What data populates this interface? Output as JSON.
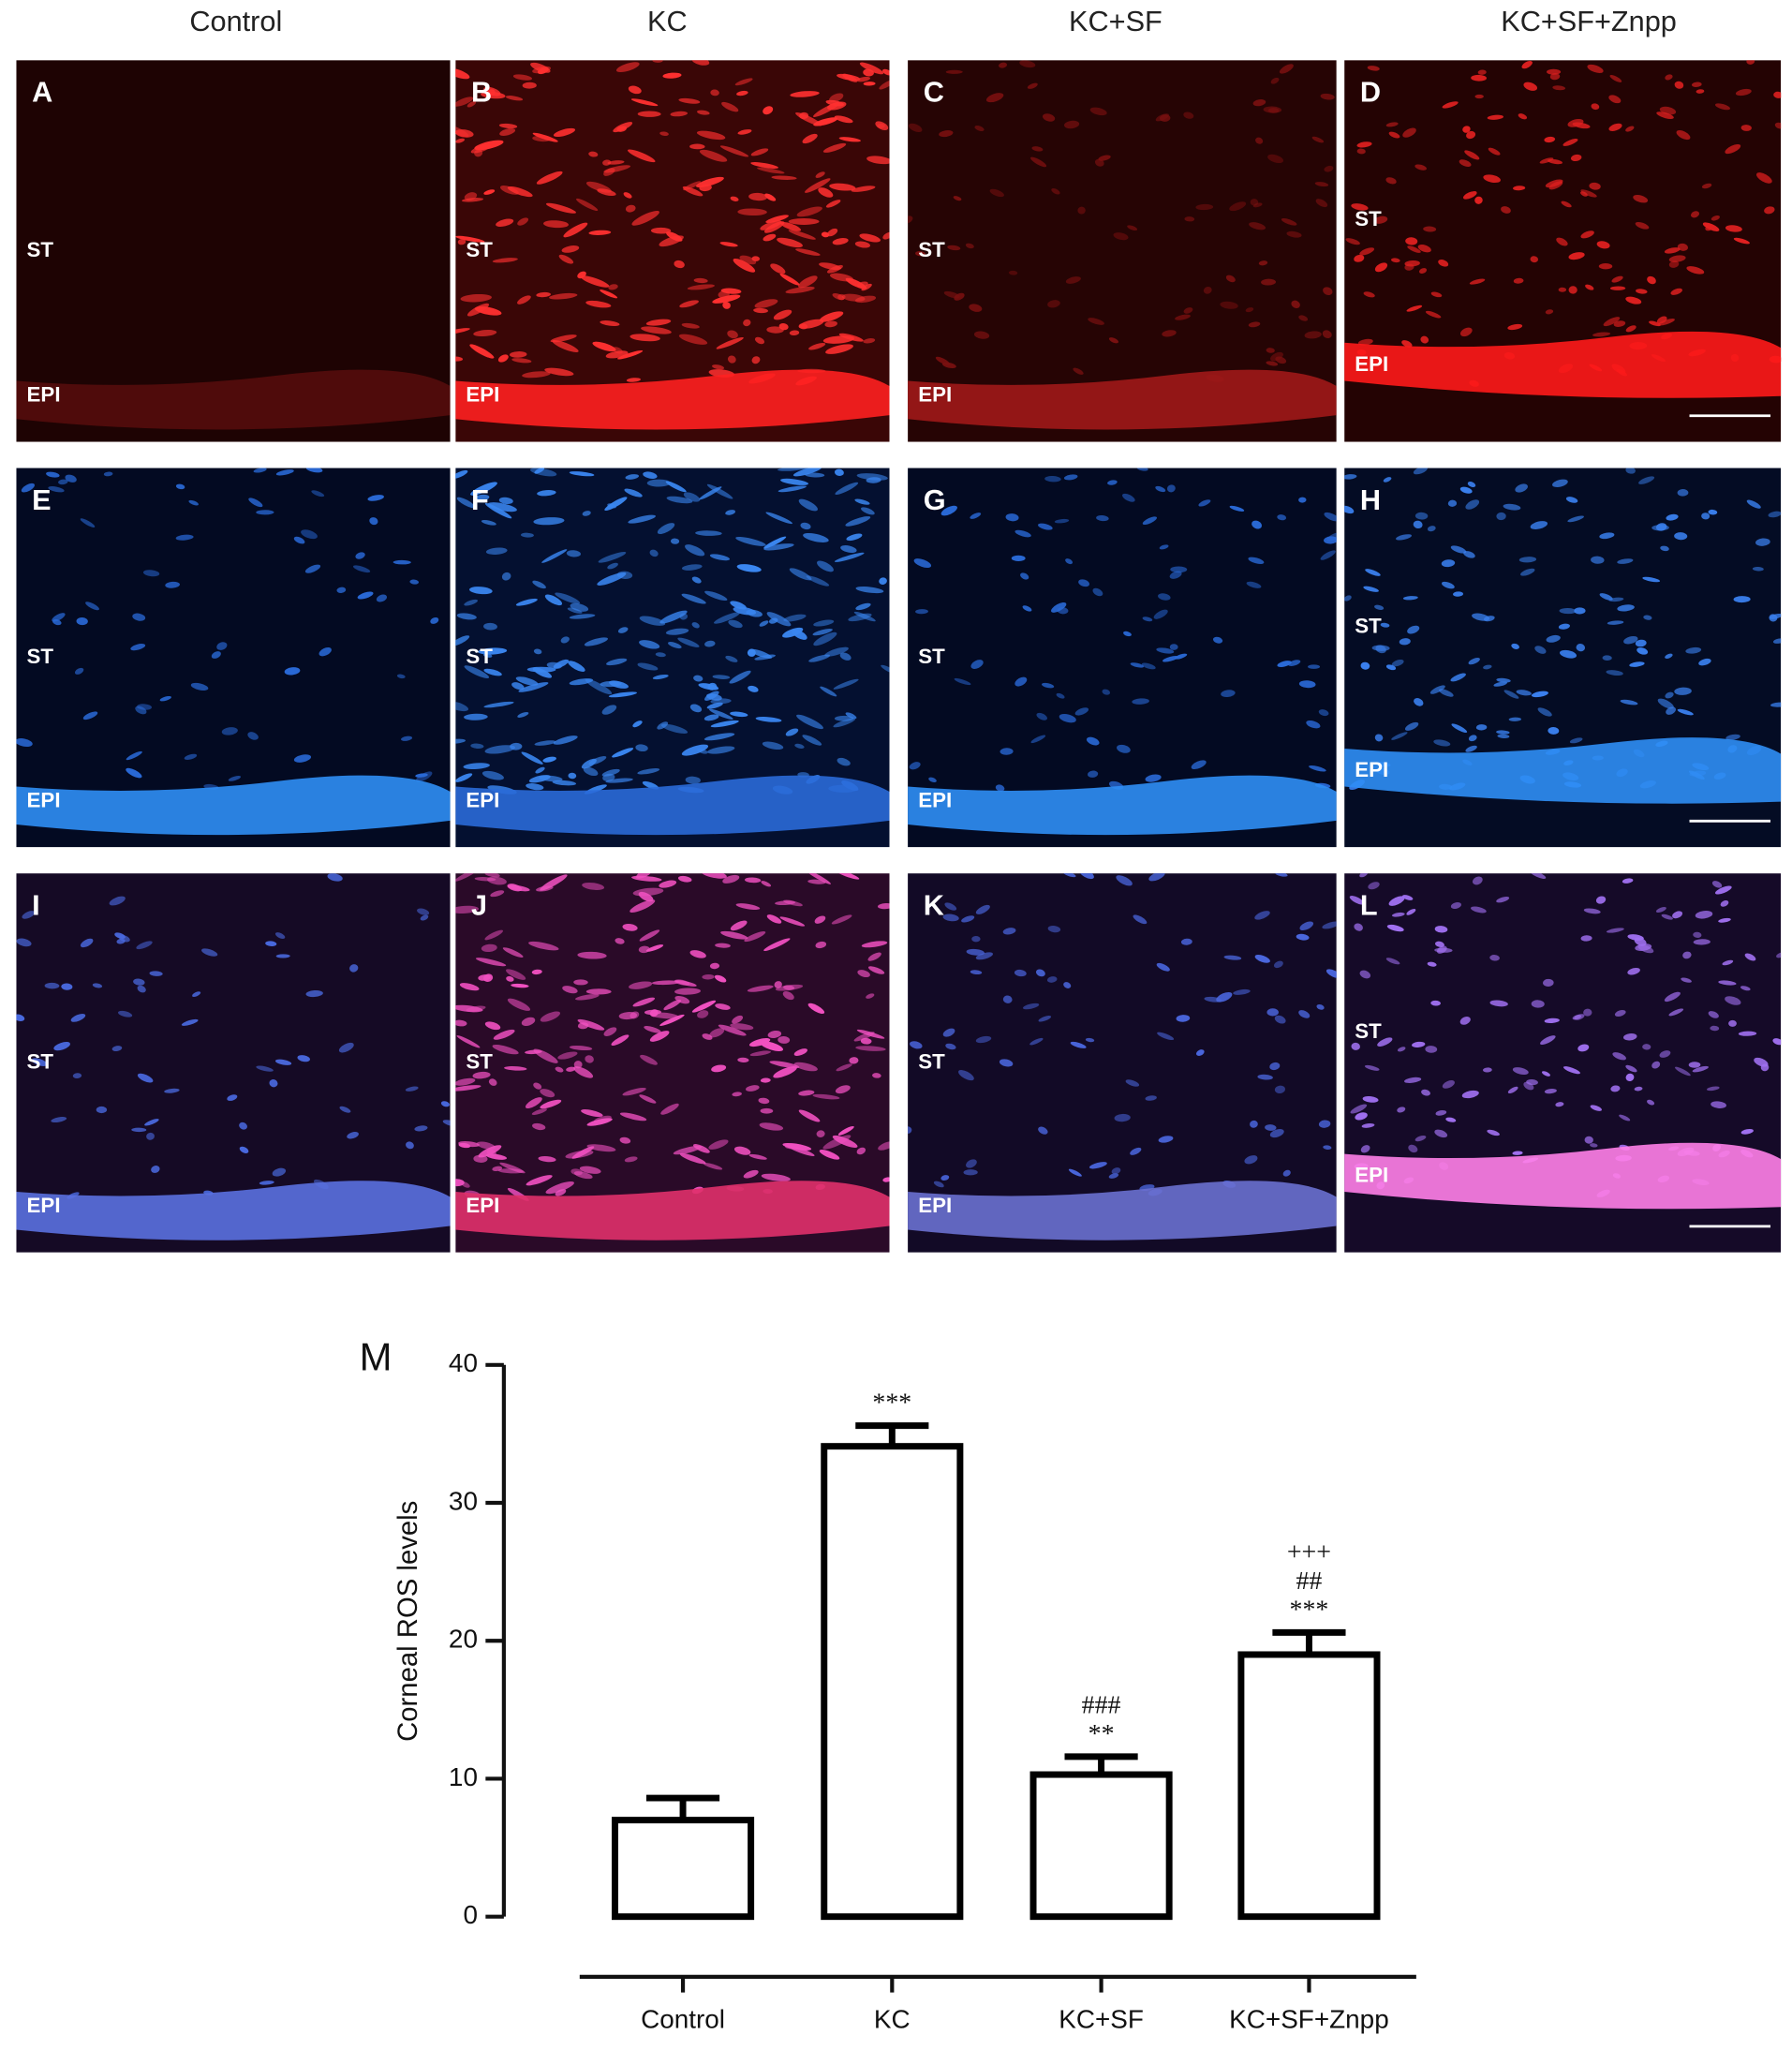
{
  "column_headers": [
    "Control",
    "KC",
    "KC+SF",
    "KC+SF+Znpp"
  ],
  "panels": [
    {
      "letter": "A",
      "layer_top": "ST",
      "layer_bottom": "EPI"
    },
    {
      "letter": "B",
      "layer_top": "ST",
      "layer_bottom": "EPI"
    },
    {
      "letter": "C",
      "layer_top": "ST",
      "layer_bottom": "EPI"
    },
    {
      "letter": "D",
      "layer_top": "ST",
      "layer_bottom": "EPI"
    },
    {
      "letter": "E",
      "layer_top": "ST",
      "layer_bottom": "EPI"
    },
    {
      "letter": "F",
      "layer_top": "ST",
      "layer_bottom": "EPI"
    },
    {
      "letter": "G",
      "layer_top": "ST",
      "layer_bottom": "EPI"
    },
    {
      "letter": "H",
      "layer_top": "ST",
      "layer_bottom": "EPI"
    },
    {
      "letter": "I",
      "layer_top": "ST",
      "layer_bottom": "EPI"
    },
    {
      "letter": "J",
      "layer_top": "ST",
      "layer_bottom": "EPI"
    },
    {
      "letter": "K",
      "layer_top": "ST",
      "layer_bottom": "EPI"
    },
    {
      "letter": "L",
      "layer_top": "ST",
      "layer_bottom": "EPI"
    }
  ],
  "chart_data": {
    "type": "bar",
    "panel_label": "M",
    "y_label": "Corneal ROS levels",
    "categories": [
      "Control",
      "KC",
      "KC+SF",
      "KC+SF+Znpp"
    ],
    "values": [
      7,
      34.1,
      10.3,
      19.0
    ],
    "errors": [
      1.6,
      1.5,
      1.3,
      1.6
    ],
    "annotations": [
      [],
      [
        "***"
      ],
      [
        "###",
        "**"
      ],
      [
        "+++",
        "##",
        "***"
      ]
    ],
    "ylim": [
      0,
      40
    ],
    "yticks": [
      0,
      10,
      20,
      30,
      40
    ],
    "color": "#ffffff",
    "edge_color": "#000000"
  }
}
